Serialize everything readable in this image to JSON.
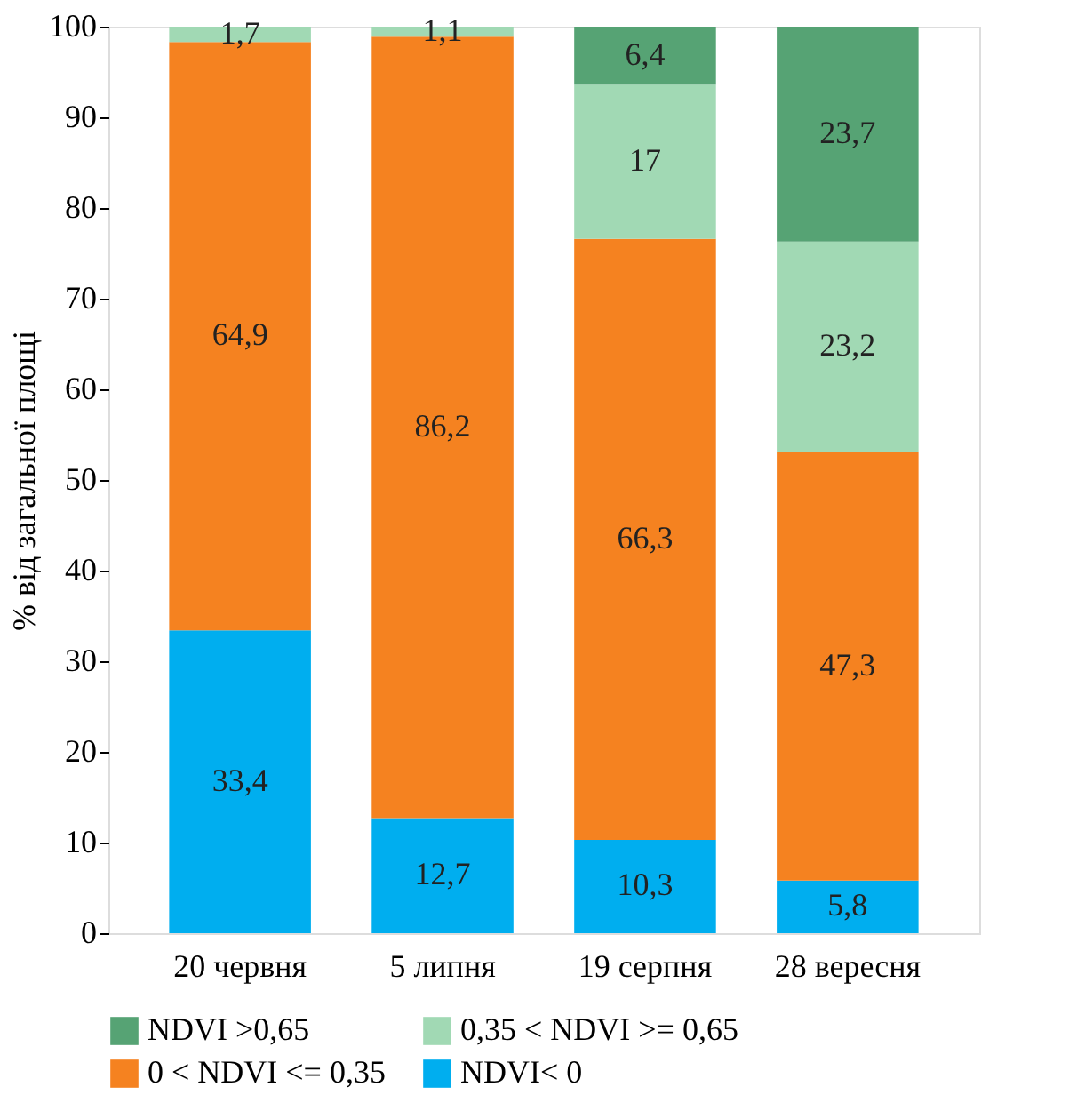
{
  "chart_data": {
    "type": "bar",
    "stacked": true,
    "ylabel": "% від загальної площі",
    "categories": [
      "20 червня",
      "5 липня",
      "19 серпня",
      "28 вересня"
    ],
    "series": [
      {
        "name": "NDVI< 0",
        "color": "#00aeef",
        "values": [
          33.4,
          12.7,
          10.3,
          5.8
        ],
        "value_labels": [
          "33,4",
          "12,7",
          "10,3",
          "5,8"
        ]
      },
      {
        "name": "0 < NDVI <= 0,35",
        "color": "#f58220",
        "values": [
          64.9,
          86.2,
          66.3,
          47.3
        ],
        "value_labels": [
          "64,9",
          "86,2",
          "66,3",
          "47,3"
        ]
      },
      {
        "name": "0,35 < NDVI >= 0,65",
        "color": "#a1d9b4",
        "values": [
          1.7,
          1.1,
          17,
          23.2
        ],
        "value_labels": [
          "1,7",
          "1,1",
          "17",
          "23,2"
        ]
      },
      {
        "name": "NDVI >0,65",
        "color": "#56a374",
        "values": [
          null,
          null,
          6.4,
          23.7
        ],
        "value_labels": [
          null,
          null,
          "6,4",
          "23,7"
        ]
      }
    ],
    "ylim": [
      0,
      100
    ],
    "yticks": [
      0,
      10,
      20,
      30,
      40,
      50,
      60,
      70,
      80,
      90,
      100
    ],
    "grid": false,
    "legend": "bottom"
  }
}
